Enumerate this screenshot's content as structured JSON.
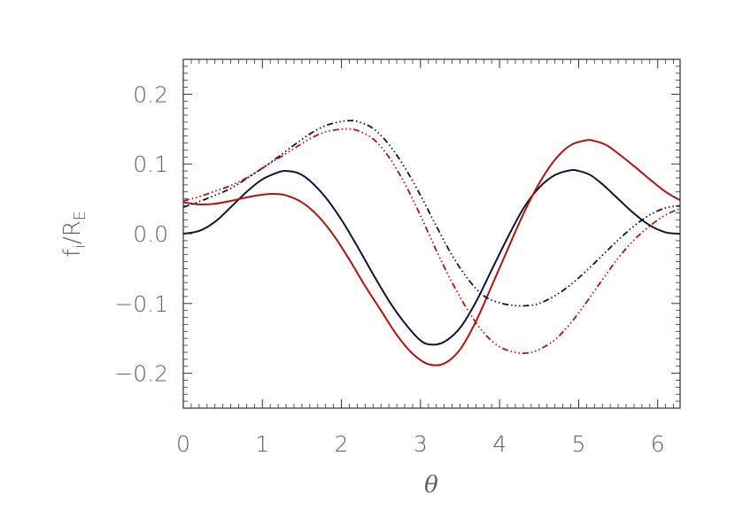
{
  "chart_data": {
    "type": "line",
    "xlabel": "θ",
    "ylabel": {
      "main": "f",
      "sub_i": "i",
      "slash": "/R",
      "sub_e": "E"
    },
    "xlim": [
      0,
      6.2832
    ],
    "ylim": [
      -0.25,
      0.25
    ],
    "xticks": [
      0,
      1,
      2,
      3,
      4,
      5,
      6
    ],
    "yticks": [
      -0.2,
      -0.1,
      0.0,
      0.1,
      0.2
    ],
    "ytick_labels": [
      "−0.2",
      "−0.1",
      "0.0",
      "0.1",
      "0.2"
    ],
    "grid": false,
    "series": [
      {
        "color": "#0f1338",
        "style": "solid",
        "x": [
          0,
          0.2,
          0.4,
          0.6,
          0.8,
          1.0,
          1.2,
          1.3,
          1.45,
          1.6,
          1.8,
          2.0,
          2.2,
          2.4,
          2.6,
          2.8,
          3.0,
          3.14,
          3.3,
          3.5,
          3.7,
          3.9,
          4.1,
          4.3,
          4.5,
          4.7,
          4.9,
          5.0,
          5.15,
          5.3,
          5.5,
          5.7,
          5.9,
          6.1,
          6.2832
        ],
        "y": [
          0.0,
          0.004,
          0.017,
          0.038,
          0.06,
          0.078,
          0.088,
          0.09,
          0.087,
          0.076,
          0.052,
          0.02,
          -0.018,
          -0.058,
          -0.096,
          -0.128,
          -0.153,
          -0.159,
          -0.155,
          -0.135,
          -0.098,
          -0.052,
          -0.006,
          0.036,
          0.066,
          0.084,
          0.091,
          0.09,
          0.084,
          0.071,
          0.05,
          0.029,
          0.012,
          0.002,
          0.0
        ]
      },
      {
        "color": "#b3110f",
        "style": "solid",
        "x": [
          0,
          0.2,
          0.4,
          0.6,
          0.8,
          1.0,
          1.15,
          1.3,
          1.5,
          1.7,
          1.9,
          2.1,
          2.3,
          2.5,
          2.7,
          2.9,
          3.1,
          3.3,
          3.5,
          3.7,
          3.9,
          4.1,
          4.3,
          4.5,
          4.7,
          4.9,
          5.1,
          5.2,
          5.35,
          5.5,
          5.7,
          5.9,
          6.1,
          6.2832
        ],
        "y": [
          0.045,
          0.042,
          0.043,
          0.047,
          0.052,
          0.056,
          0.057,
          0.055,
          0.045,
          0.026,
          -0.002,
          -0.037,
          -0.075,
          -0.11,
          -0.145,
          -0.172,
          -0.187,
          -0.186,
          -0.166,
          -0.126,
          -0.075,
          -0.023,
          0.028,
          0.072,
          0.106,
          0.127,
          0.134,
          0.133,
          0.127,
          0.115,
          0.097,
          0.078,
          0.06,
          0.048
        ]
      },
      {
        "color": "#0f1338",
        "style": "dashdot",
        "x": [
          0,
          0.2,
          0.4,
          0.6,
          0.8,
          1.0,
          1.2,
          1.4,
          1.6,
          1.8,
          2.0,
          2.1,
          2.2,
          2.4,
          2.6,
          2.8,
          3.0,
          3.2,
          3.4,
          3.6,
          3.8,
          4.0,
          4.2,
          4.35,
          4.5,
          4.7,
          4.9,
          5.1,
          5.3,
          5.5,
          5.7,
          5.9,
          6.1,
          6.2832
        ],
        "y": [
          0.038,
          0.046,
          0.055,
          0.065,
          0.079,
          0.094,
          0.11,
          0.127,
          0.143,
          0.155,
          0.161,
          0.162,
          0.161,
          0.151,
          0.128,
          0.095,
          0.055,
          0.011,
          -0.031,
          -0.065,
          -0.089,
          -0.099,
          -0.103,
          -0.103,
          -0.1,
          -0.089,
          -0.073,
          -0.053,
          -0.031,
          -0.009,
          0.011,
          0.027,
          0.037,
          0.04
        ]
      },
      {
        "color": "#b3110f",
        "style": "dashdot",
        "x": [
          0,
          0.2,
          0.4,
          0.6,
          0.8,
          1.0,
          1.2,
          1.4,
          1.6,
          1.8,
          2.0,
          2.1,
          2.2,
          2.4,
          2.6,
          2.8,
          3.0,
          3.2,
          3.4,
          3.6,
          3.8,
          4.0,
          4.2,
          4.35,
          4.5,
          4.7,
          4.9,
          5.1,
          5.3,
          5.5,
          5.7,
          5.9,
          6.1,
          6.2832
        ],
        "y": [
          0.047,
          0.053,
          0.061,
          0.069,
          0.08,
          0.094,
          0.108,
          0.122,
          0.136,
          0.146,
          0.15,
          0.15,
          0.148,
          0.136,
          0.11,
          0.072,
          0.026,
          -0.024,
          -0.07,
          -0.11,
          -0.142,
          -0.162,
          -0.17,
          -0.171,
          -0.166,
          -0.152,
          -0.128,
          -0.098,
          -0.066,
          -0.035,
          -0.009,
          0.011,
          0.027,
          0.036
        ]
      }
    ]
  }
}
